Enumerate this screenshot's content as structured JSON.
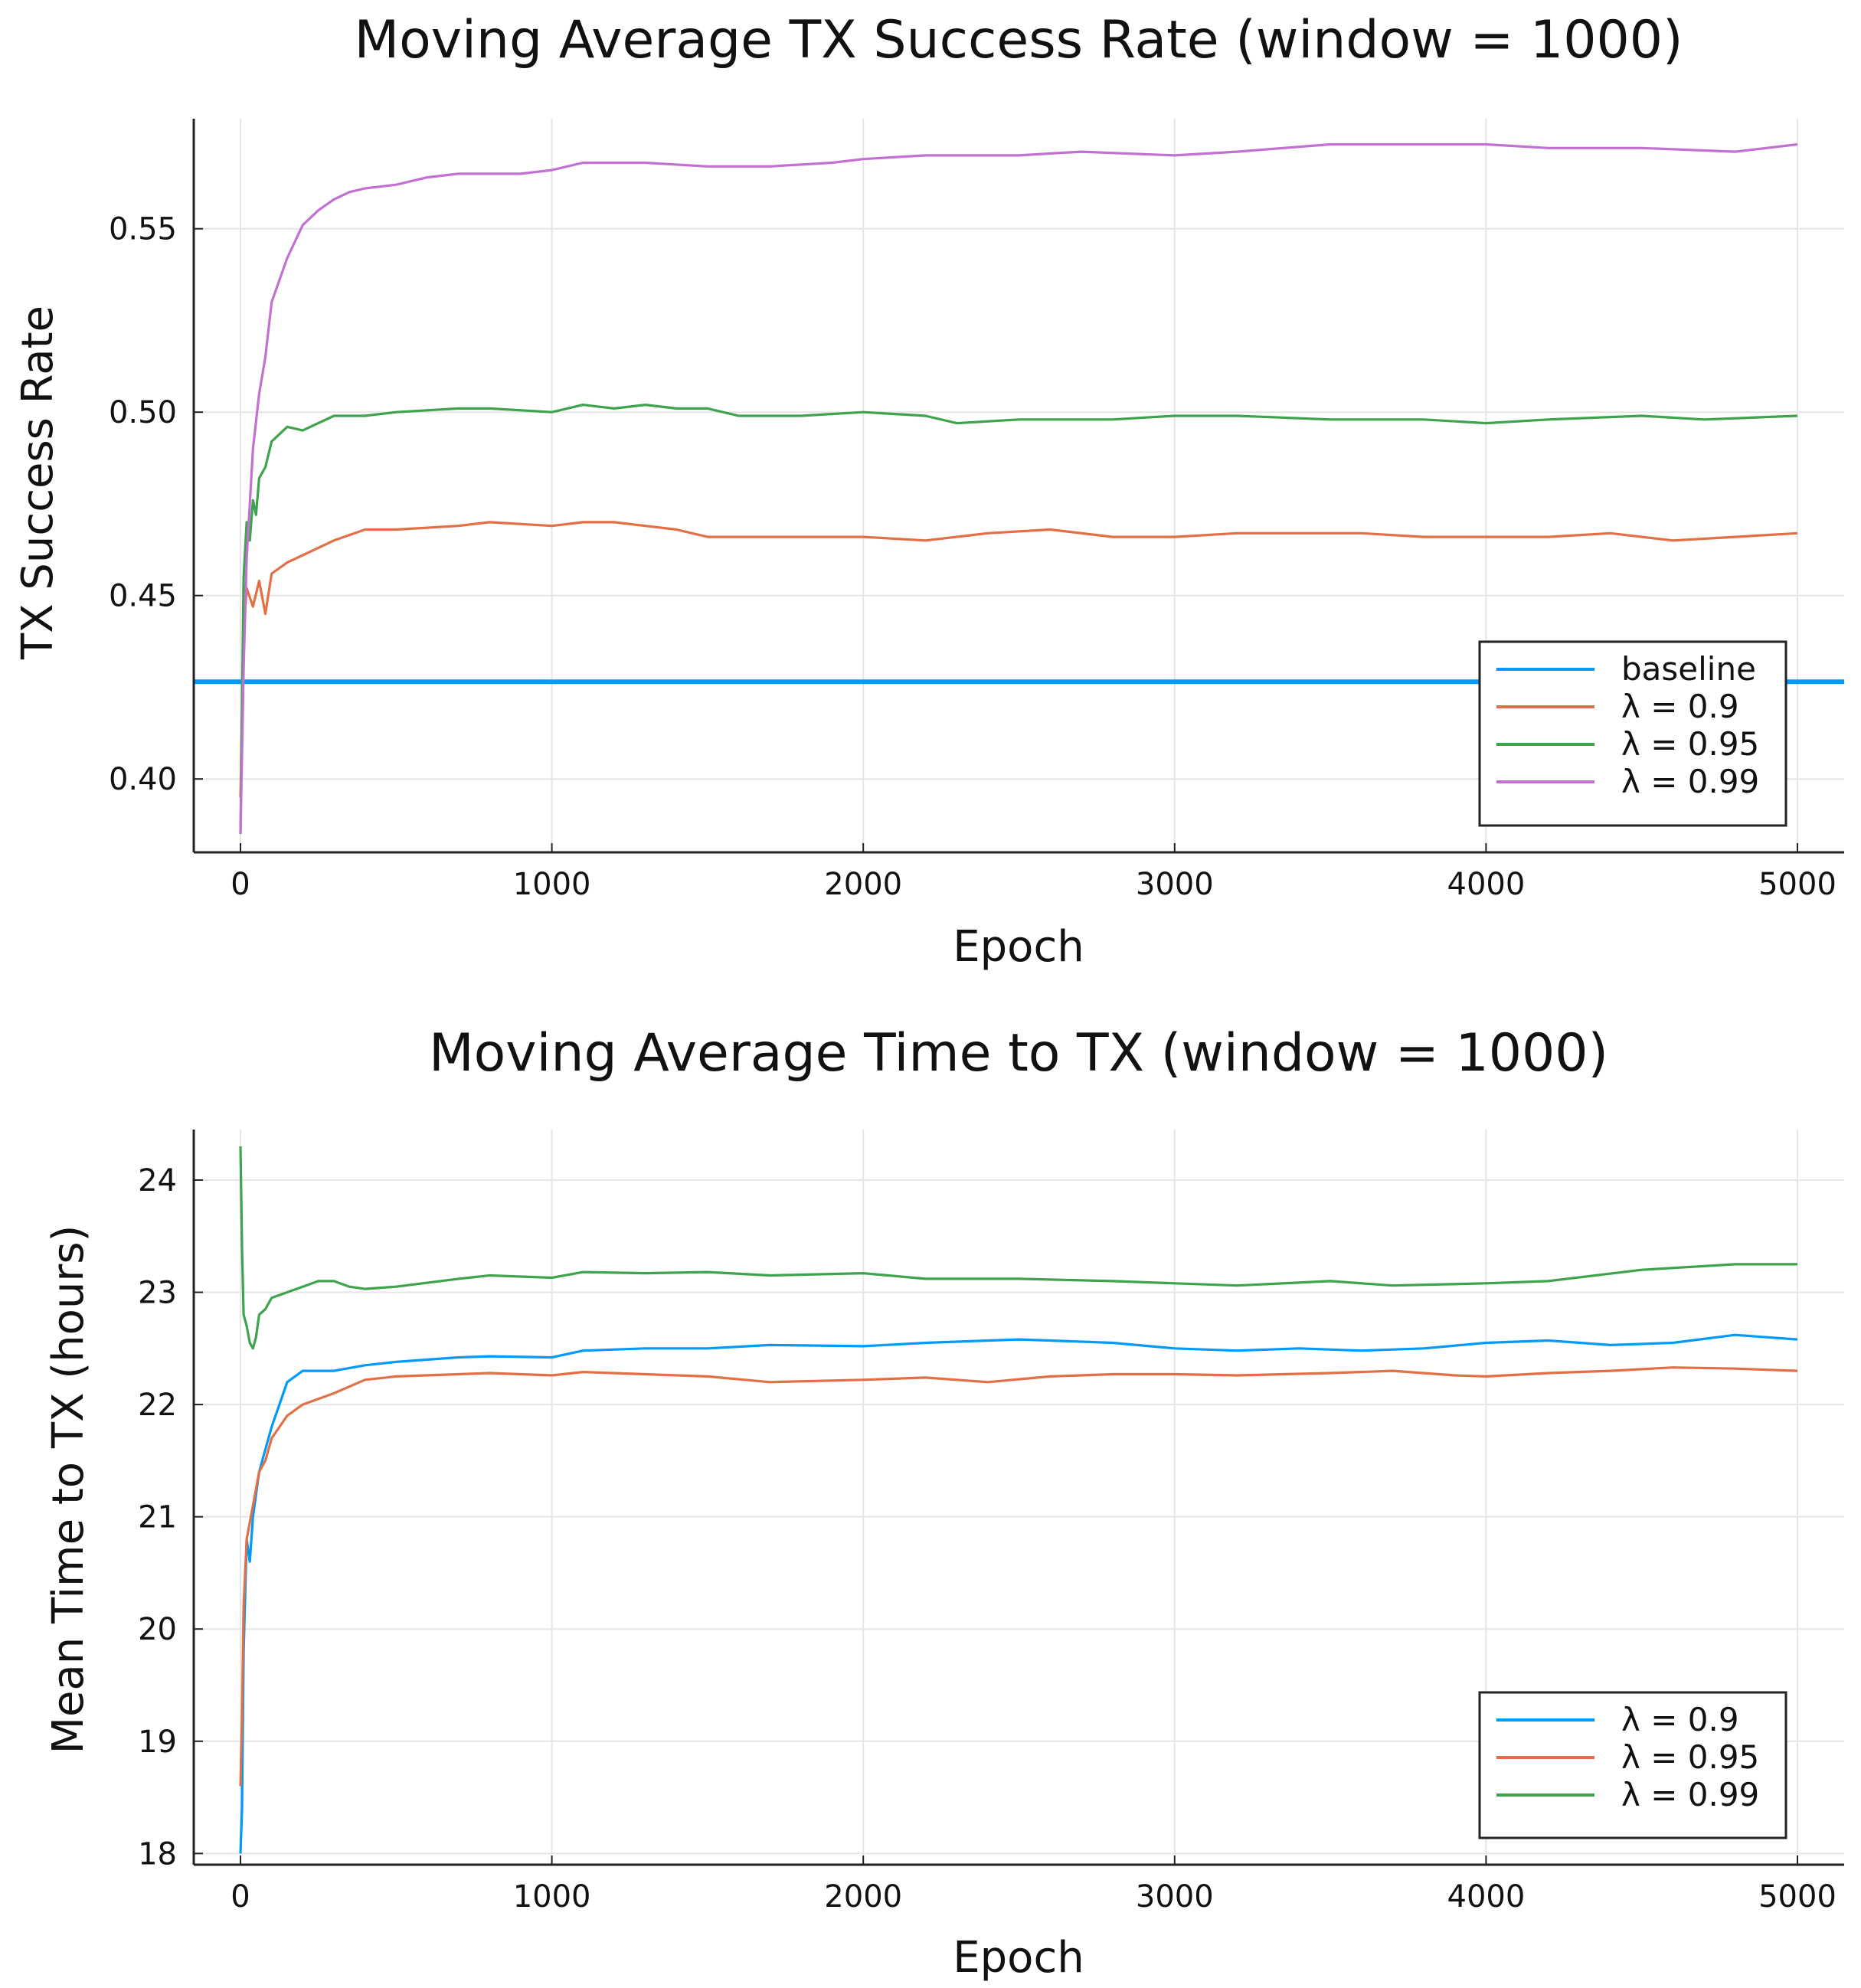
{
  "chart_data": [
    {
      "type": "line",
      "title": "Moving Average TX Success Rate (window = 1000)",
      "xlabel": "Epoch",
      "ylabel": "TX Success Rate",
      "xlim": [
        -150,
        5150
      ],
      "ylim": [
        0.38,
        0.58
      ],
      "xticks": [
        0,
        1000,
        2000,
        3000,
        4000,
        5000
      ],
      "xtick_labels": [
        "0",
        "1000",
        "2000",
        "3000",
        "4000",
        "5000"
      ],
      "yticks": [
        0.4,
        0.45,
        0.5,
        0.55
      ],
      "ytick_labels": [
        "0.40",
        "0.45",
        "0.50",
        "0.55"
      ],
      "grid": true,
      "legend_position": "bottom-right",
      "series": [
        {
          "name": "baseline",
          "color": "#009AFA",
          "x": [
            -150,
            5150
          ],
          "y": [
            0.4265,
            0.4265
          ]
        },
        {
          "name": "λ = 0.9",
          "color": "#E36F47",
          "x": [
            0,
            10,
            20,
            40,
            60,
            80,
            100,
            150,
            200,
            300,
            400,
            500,
            700,
            800,
            1000,
            1100,
            1200,
            1300,
            1400,
            1500,
            1600,
            1800,
            2000,
            2200,
            2400,
            2600,
            2800,
            3000,
            3200,
            3400,
            3600,
            3800,
            4000,
            4200,
            4400,
            4600,
            4800,
            5000
          ],
          "y": [
            0.395,
            0.44,
            0.452,
            0.447,
            0.454,
            0.445,
            0.456,
            0.459,
            0.461,
            0.465,
            0.468,
            0.468,
            0.469,
            0.47,
            0.469,
            0.47,
            0.47,
            0.469,
            0.468,
            0.466,
            0.466,
            0.466,
            0.466,
            0.465,
            0.467,
            0.468,
            0.466,
            0.466,
            0.467,
            0.467,
            0.467,
            0.466,
            0.466,
            0.466,
            0.467,
            0.465,
            0.466,
            0.467
          ]
        },
        {
          "name": "λ = 0.95",
          "color": "#3DA44D",
          "x": [
            0,
            10,
            20,
            30,
            40,
            50,
            60,
            80,
            100,
            150,
            200,
            300,
            400,
            500,
            700,
            800,
            1000,
            1100,
            1200,
            1300,
            1400,
            1500,
            1600,
            1800,
            2000,
            2200,
            2300,
            2500,
            2800,
            3000,
            3200,
            3500,
            3800,
            4000,
            4200,
            4500,
            4700,
            5000
          ],
          "y": [
            0.385,
            0.455,
            0.47,
            0.465,
            0.476,
            0.472,
            0.482,
            0.485,
            0.492,
            0.496,
            0.495,
            0.499,
            0.499,
            0.5,
            0.501,
            0.501,
            0.5,
            0.502,
            0.501,
            0.502,
            0.501,
            0.501,
            0.499,
            0.499,
            0.5,
            0.499,
            0.497,
            0.498,
            0.498,
            0.499,
            0.499,
            0.498,
            0.498,
            0.497,
            0.498,
            0.499,
            0.498,
            0.499
          ]
        },
        {
          "name": "λ = 0.99",
          "color": "#C271D2",
          "x": [
            0,
            10,
            20,
            30,
            40,
            60,
            80,
            100,
            150,
            200,
            250,
            300,
            350,
            400,
            500,
            600,
            700,
            900,
            1000,
            1100,
            1300,
            1500,
            1700,
            1900,
            2000,
            2200,
            2500,
            2700,
            3000,
            3200,
            3500,
            3800,
            4000,
            4200,
            4500,
            4800,
            5000
          ],
          "y": [
            0.385,
            0.43,
            0.46,
            0.475,
            0.49,
            0.505,
            0.515,
            0.53,
            0.542,
            0.551,
            0.555,
            0.558,
            0.56,
            0.561,
            0.562,
            0.564,
            0.565,
            0.565,
            0.566,
            0.568,
            0.568,
            0.567,
            0.567,
            0.568,
            0.569,
            0.57,
            0.57,
            0.571,
            0.57,
            0.571,
            0.573,
            0.573,
            0.573,
            0.572,
            0.572,
            0.571,
            0.573
          ]
        }
      ]
    },
    {
      "type": "line",
      "title": "Moving Average Time to TX (window = 1000)",
      "xlabel": "Epoch",
      "ylabel": "Mean Time to TX (hours)",
      "xlim": [
        -150,
        5150
      ],
      "ylim": [
        17.9,
        24.45
      ],
      "xticks": [
        0,
        1000,
        2000,
        3000,
        4000,
        5000
      ],
      "xtick_labels": [
        "0",
        "1000",
        "2000",
        "3000",
        "4000",
        "5000"
      ],
      "yticks": [
        18,
        19,
        20,
        21,
        22,
        23,
        24
      ],
      "ytick_labels": [
        "18",
        "19",
        "20",
        "21",
        "22",
        "23",
        "24"
      ],
      "grid": true,
      "legend_position": "bottom-right",
      "series": [
        {
          "name": "λ = 0.9",
          "color": "#009AFA",
          "x": [
            0,
            5,
            10,
            20,
            30,
            40,
            60,
            80,
            100,
            150,
            200,
            300,
            400,
            500,
            700,
            800,
            1000,
            1100,
            1300,
            1500,
            1700,
            2000,
            2200,
            2500,
            2600,
            2800,
            3000,
            3200,
            3400,
            3600,
            3800,
            4000,
            4200,
            4400,
            4600,
            4800,
            5000
          ],
          "y": [
            18.0,
            18.4,
            19.8,
            20.8,
            20.6,
            21.0,
            21.4,
            21.6,
            21.8,
            22.2,
            22.3,
            22.3,
            22.35,
            22.38,
            22.42,
            22.43,
            22.42,
            22.48,
            22.5,
            22.5,
            22.53,
            22.52,
            22.55,
            22.58,
            22.57,
            22.55,
            22.5,
            22.48,
            22.5,
            22.48,
            22.5,
            22.55,
            22.57,
            22.53,
            22.55,
            22.62,
            22.58
          ]
        },
        {
          "name": "λ = 0.95",
          "color": "#E36F47",
          "x": [
            0,
            5,
            10,
            20,
            40,
            60,
            80,
            100,
            150,
            200,
            300,
            400,
            500,
            700,
            800,
            1000,
            1100,
            1300,
            1500,
            1700,
            2000,
            2200,
            2400,
            2600,
            2800,
            3000,
            3200,
            3500,
            3700,
            3900,
            4000,
            4200,
            4400,
            4600,
            4800,
            5000
          ],
          "y": [
            18.6,
            19.2,
            20.2,
            20.8,
            21.1,
            21.4,
            21.5,
            21.7,
            21.9,
            22.0,
            22.1,
            22.22,
            22.25,
            22.27,
            22.28,
            22.26,
            22.29,
            22.27,
            22.25,
            22.2,
            22.22,
            22.24,
            22.2,
            22.25,
            22.27,
            22.27,
            22.26,
            22.28,
            22.3,
            22.26,
            22.25,
            22.28,
            22.3,
            22.33,
            22.32,
            22.3
          ]
        },
        {
          "name": "λ = 0.99",
          "color": "#3DA44D",
          "x": [
            0,
            5,
            10,
            20,
            30,
            40,
            50,
            60,
            80,
            100,
            150,
            200,
            250,
            300,
            350,
            400,
            500,
            700,
            800,
            1000,
            1100,
            1300,
            1500,
            1700,
            2000,
            2200,
            2500,
            2800,
            3000,
            3200,
            3500,
            3700,
            4000,
            4200,
            4500,
            4800,
            5000
          ],
          "y": [
            24.3,
            23.4,
            22.8,
            22.7,
            22.55,
            22.5,
            22.6,
            22.8,
            22.85,
            22.95,
            23.0,
            23.05,
            23.1,
            23.1,
            23.05,
            23.03,
            23.05,
            23.12,
            23.15,
            23.13,
            23.18,
            23.17,
            23.18,
            23.15,
            23.17,
            23.12,
            23.12,
            23.1,
            23.08,
            23.06,
            23.1,
            23.06,
            23.08,
            23.1,
            23.2,
            23.25,
            23.25
          ]
        }
      ]
    }
  ]
}
